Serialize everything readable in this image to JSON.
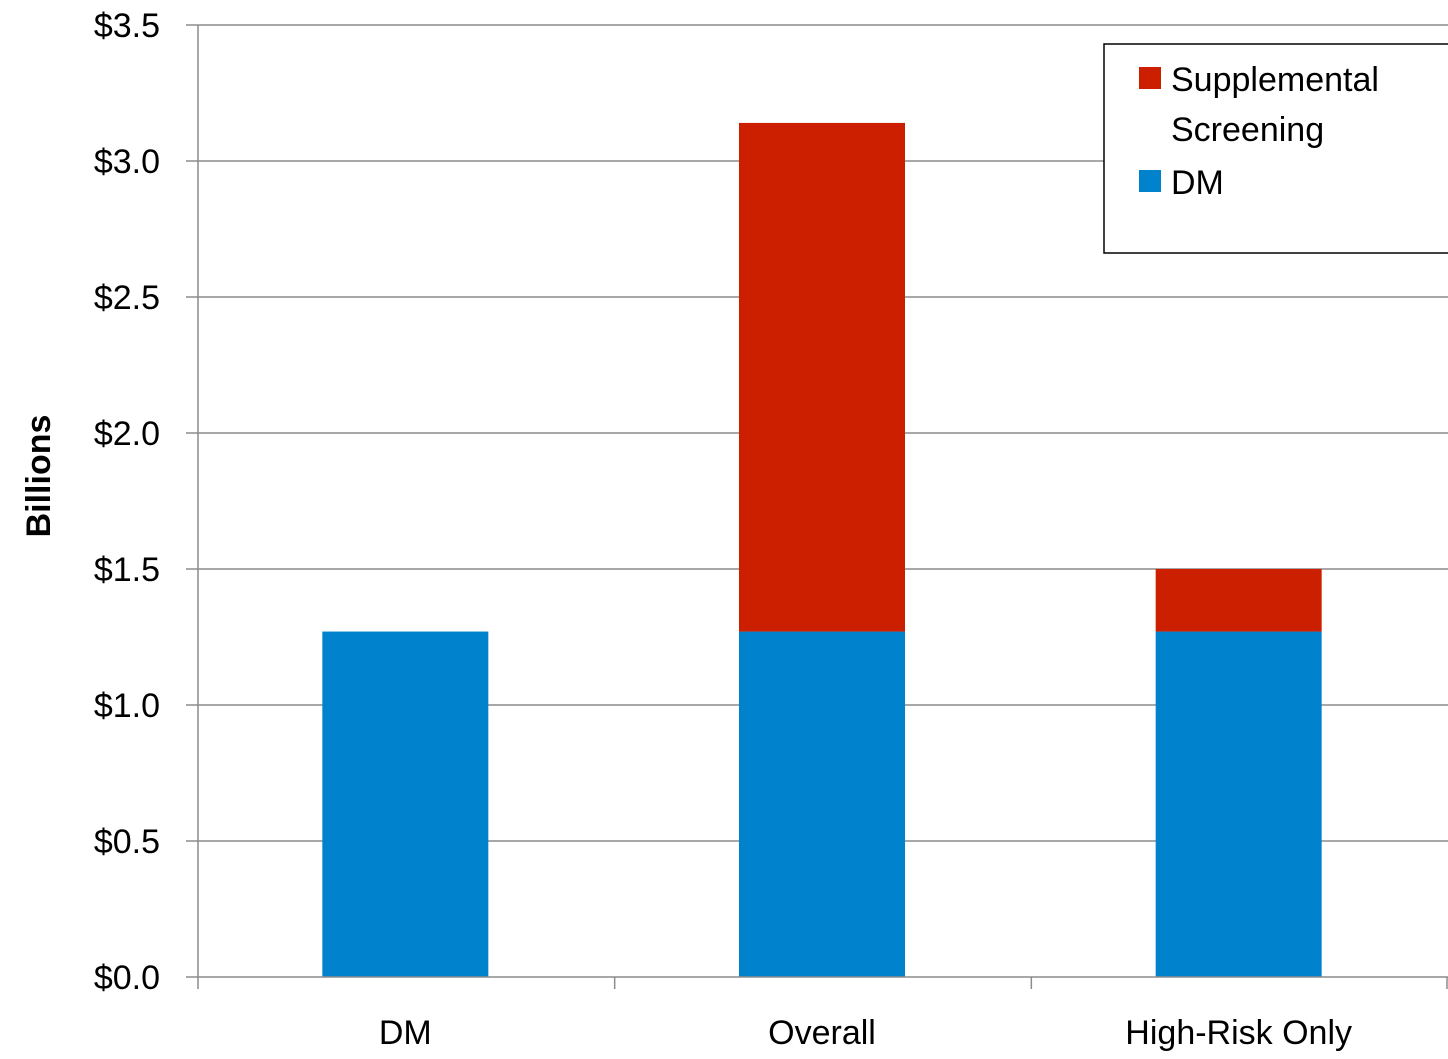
{
  "chart_data": {
    "type": "bar",
    "stacked": true,
    "title": "",
    "xlabel": "",
    "ylabel": "Billions",
    "ylim": [
      0,
      3.5
    ],
    "yticks": [
      0,
      0.5,
      1.0,
      1.5,
      2.0,
      2.5,
      3.0,
      3.5
    ],
    "ytick_labels": [
      "$0.0",
      "$0.5",
      "$1.0",
      "$1.5",
      "$2.0",
      "$2.5",
      "$3.0",
      "$3.5"
    ],
    "categories": [
      "DM",
      "Overall",
      "High-Risk Only"
    ],
    "series": [
      {
        "name": "DM",
        "color": "#0083cc",
        "values": [
          1.27,
          1.27,
          1.27
        ]
      },
      {
        "name": "Supplemental Screening",
        "color": "#cc1f00",
        "values": [
          0,
          1.87,
          0.23
        ]
      }
    ],
    "grid": true,
    "legend": {
      "position": "top-right",
      "entries": [
        {
          "series": "Supplemental Screening",
          "lines": [
            "Supplemental",
            "Screening"
          ],
          "color": "#cc1f00"
        },
        {
          "series": "DM",
          "lines": [
            "DM"
          ],
          "color": "#0083cc"
        }
      ]
    }
  }
}
